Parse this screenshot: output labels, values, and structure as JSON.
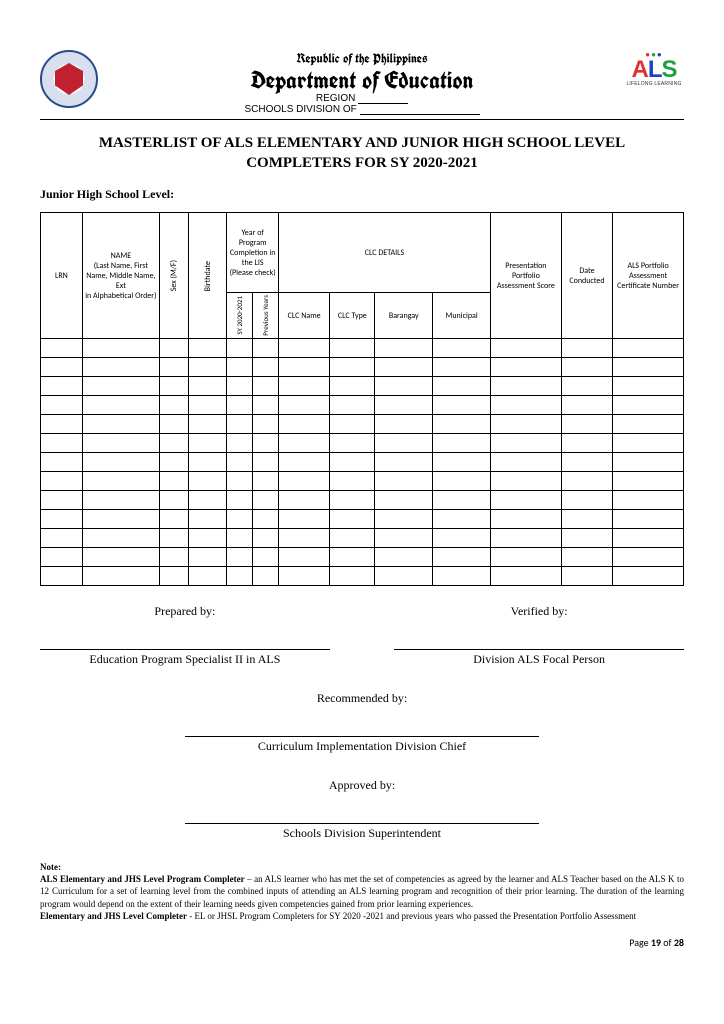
{
  "header": {
    "republic": "Republic of the Philippines",
    "department": "Department of Education",
    "region_label": "REGION",
    "schools_division_label": "SCHOOLS DIVISION OF",
    "als_tagline": "LIFELONG LEARNING"
  },
  "title_line1": "MASTERLIST OF ALS ELEMENTARY AND JUNIOR HIGH SCHOOL LEVEL",
  "title_line2": "COMPLETERS FOR SY 2020-2021",
  "subtitle": "Junior High School Level:",
  "table": {
    "columns": {
      "lrn": "LRN",
      "name": "NAME\n(Last Name, First Name, Middle Name, Ext\nin Alphabetical Order)",
      "sex": "Sex (M/F)",
      "birthdate": "Birthdate",
      "year_completion": "Year of Program Completion in the LIS (Please check)",
      "sy2020": "SY 2020-2021",
      "prev_years": "Previous Years",
      "clc_details": "CLC DETAILS",
      "clc_name": "CLC Name",
      "clc_type": "CLC Type",
      "barangay": "Barangay",
      "municipal": "Municipal",
      "presentation": "Presentation Portfolio Assessment Score",
      "date_conducted": "Date Conducted",
      "als_cert": "ALS Portfolio Assessment Certificate Number"
    },
    "blank_row_count": 13,
    "col_widths_pct": [
      6.5,
      12,
      4.5,
      6,
      4,
      4,
      8,
      7,
      9,
      9,
      11,
      8,
      11
    ]
  },
  "signatures": {
    "prepared_by": "Prepared by:",
    "prepared_title": "Education Program Specialist II in ALS",
    "verified_by": "Verified by:",
    "verified_title": "Division ALS Focal Person",
    "recommended_by": "Recommended by:",
    "recommended_title": "Curriculum Implementation Division Chief",
    "approved_by": "Approved by:",
    "approved_title": "Schools Division Superintendent"
  },
  "note": {
    "heading": "Note:",
    "p1_bold": "ALS Elementary and JHS Level Program Completer",
    "p1": " – an ALS learner who has met the set of competencies as agreed by the learner and ALS Teacher based on the ALS K to 12 Curriculum for a set of learning level from the combined inputs of attending an ALS learning program and recognition of their prior learning. The duration of the learning program would depend on the extent of their learning needs given competencies gained from prior learning experiences.",
    "p2_bold": "Elementary and JHS Level Completer",
    "p2": " - EL or JHSL Program Completers for SY 2020 -2021 and previous years who passed the Presentation Portfolio Assessment"
  },
  "footer": {
    "page_label": "Page ",
    "page_num": "19",
    "of_label": " of ",
    "page_total": "28"
  },
  "style": {
    "background": "#ffffff",
    "text_color": "#000000",
    "als_red": "#e03030",
    "als_green": "#20a040",
    "als_blue": "#2040c0"
  }
}
